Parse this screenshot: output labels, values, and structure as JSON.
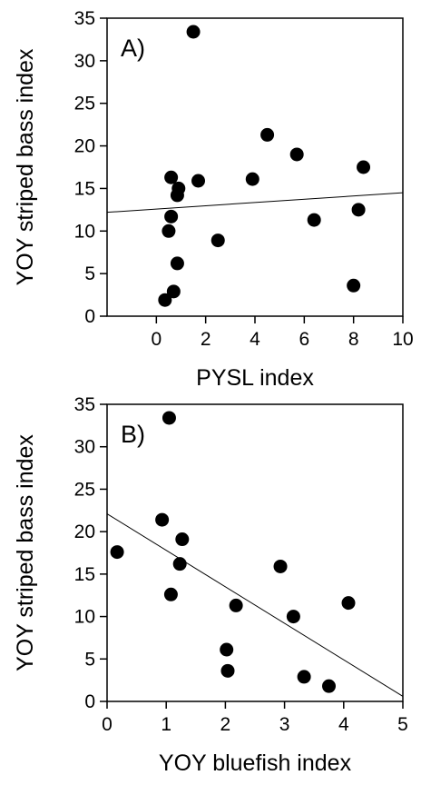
{
  "chart_data": [
    {
      "type": "scatter",
      "panel_label": "A)",
      "xlabel": "PYSL index",
      "ylabel": "YOY striped bass index",
      "xlim": [
        -2,
        10
      ],
      "ylim": [
        0,
        35
      ],
      "xticks": [
        0,
        2,
        4,
        6,
        8,
        10
      ],
      "yticks": [
        0,
        5,
        10,
        15,
        20,
        25,
        30,
        35
      ],
      "grid": false,
      "points": [
        {
          "x": 1.5,
          "y": 33.4
        },
        {
          "x": 4.5,
          "y": 21.3
        },
        {
          "x": 5.7,
          "y": 19.0
        },
        {
          "x": 8.4,
          "y": 17.5
        },
        {
          "x": 0.6,
          "y": 16.3
        },
        {
          "x": 3.9,
          "y": 16.1
        },
        {
          "x": 1.7,
          "y": 15.9
        },
        {
          "x": 0.9,
          "y": 15.0
        },
        {
          "x": 0.85,
          "y": 14.2
        },
        {
          "x": 8.2,
          "y": 12.5
        },
        {
          "x": 0.6,
          "y": 11.7
        },
        {
          "x": 6.4,
          "y": 11.3
        },
        {
          "x": 0.5,
          "y": 10.0
        },
        {
          "x": 2.5,
          "y": 8.9
        },
        {
          "x": 0.85,
          "y": 6.2
        },
        {
          "x": 8.0,
          "y": 3.6
        },
        {
          "x": 0.7,
          "y": 2.9
        },
        {
          "x": 0.35,
          "y": 1.9
        }
      ],
      "trend_line": {
        "x": [
          -2,
          10
        ],
        "y": [
          12.2,
          14.5
        ]
      }
    },
    {
      "type": "scatter",
      "panel_label": "B)",
      "xlabel": "YOY bluefish index",
      "ylabel": "YOY striped bass index",
      "xlim": [
        0,
        5
      ],
      "ylim": [
        0,
        35
      ],
      "xticks": [
        0,
        1,
        2,
        3,
        4,
        5
      ],
      "yticks": [
        0,
        5,
        10,
        15,
        20,
        25,
        30,
        35
      ],
      "grid": false,
      "points": [
        {
          "x": 1.05,
          "y": 33.4
        },
        {
          "x": 0.93,
          "y": 21.4
        },
        {
          "x": 1.27,
          "y": 19.1
        },
        {
          "x": 0.17,
          "y": 17.6
        },
        {
          "x": 1.23,
          "y": 16.2
        },
        {
          "x": 2.93,
          "y": 15.9
        },
        {
          "x": 1.08,
          "y": 12.6
        },
        {
          "x": 4.08,
          "y": 11.6
        },
        {
          "x": 2.18,
          "y": 11.3
        },
        {
          "x": 3.15,
          "y": 10.0
        },
        {
          "x": 2.02,
          "y": 6.1
        },
        {
          "x": 2.04,
          "y": 3.6
        },
        {
          "x": 3.33,
          "y": 2.9
        },
        {
          "x": 3.75,
          "y": 1.8
        }
      ],
      "trend_line": {
        "x": [
          0,
          5
        ],
        "y": [
          22.1,
          0.6
        ]
      }
    }
  ]
}
